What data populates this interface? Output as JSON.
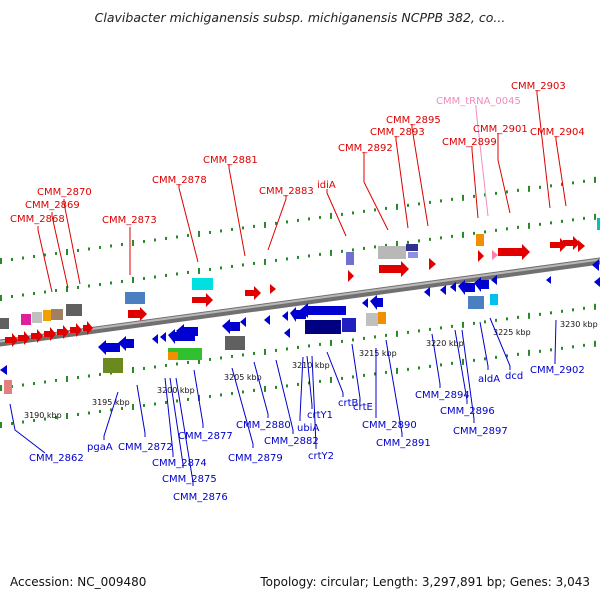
{
  "title": "Clavibacter michiganensis subsp. michiganensis NCPPB 382, co...",
  "footer": {
    "accession": "Accession: NC_009480",
    "topology": "Topology: circular; Length: 3,297,891 bp; Genes: 3,043"
  },
  "colors": {
    "forward_label": "#dd0000",
    "reverse_label": "#0000cc",
    "trna_label": "#f08cc0",
    "backbone": "#8a8a8a",
    "dots": "#2a8a2a"
  },
  "ticks": [
    "3190 kbp",
    "3195 kbp",
    "3200 kbp",
    "3205 kbp",
    "3210 kbp",
    "3215 kbp",
    "3220 kbp",
    "3225 kbp",
    "3230 kbp"
  ],
  "forward_labels": [
    "CMM_2868",
    "CMM_2869",
    "CMM_2870",
    "CMM_2873",
    "CMM_2878",
    "CMM_2881",
    "CMM_2883",
    "idiA",
    "CMM_2892",
    "CMM_2893",
    "CMM_2895",
    "CMM_tRNA_0045",
    "CMM_2899",
    "CMM_2901",
    "CMM_2903",
    "CMM_2904"
  ],
  "reverse_labels": [
    "CMM_2862",
    "pgaA",
    "CMM_2872",
    "CMM_2874",
    "CMM_2875",
    "CMM_2876",
    "CMM_2877",
    "CMM_2879",
    "CMM_2880",
    "CMM_2882",
    "ubiA",
    "crtY1",
    "crtY2",
    "crtBI",
    "crtE",
    "CMM_2890",
    "CMM_2891",
    "CMM_2894",
    "CMM_2896",
    "CMM_2897",
    "aldA",
    "dcd",
    "CMM_2902"
  ]
}
